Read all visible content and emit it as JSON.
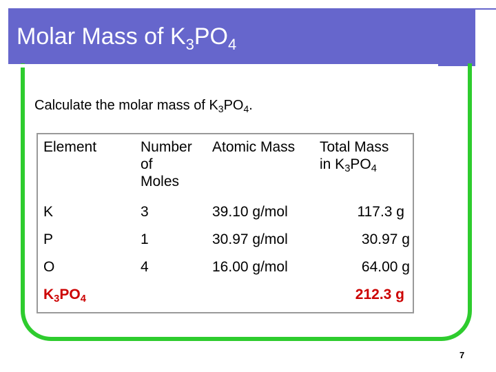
{
  "slide": {
    "title_main": "Molar Mass of K",
    "title_sub1": "3",
    "title_mid": "PO",
    "title_sub2": "4",
    "question_main": "Calculate the molar mass of K",
    "question_sub1": "3",
    "question_mid": "PO",
    "question_sub2": "4",
    "question_end": ".",
    "page_number": "7"
  },
  "table": {
    "headers": {
      "element": "Element",
      "moles_line1": "Number",
      "moles_line2": "of",
      "moles_line3": "Moles",
      "atomic": "Atomic Mass",
      "total_line1": "Total Mass",
      "total_line2_pre": "in K",
      "total_line2_sub1": "3",
      "total_line2_mid": "PO",
      "total_line2_sub2": "4"
    },
    "rows": [
      {
        "element": "K",
        "moles": "3",
        "atomic": "39.10 g/mol",
        "total": "117.3 g"
      },
      {
        "element": "P",
        "moles": "1",
        "atomic": "30.97 g/mol",
        "total": "30.97 g"
      },
      {
        "element": "O",
        "moles": "4",
        "atomic": "16.00 g/mol",
        "total": "64.00 g"
      }
    ],
    "total_row": {
      "label_pre": "K",
      "label_sub1": "3",
      "label_mid": "PO",
      "label_sub2": "4",
      "total": "212.3 g"
    }
  },
  "colors": {
    "title_bar": "#6666cc",
    "frame": "#2ecc2e",
    "highlight": "#cc0000"
  }
}
